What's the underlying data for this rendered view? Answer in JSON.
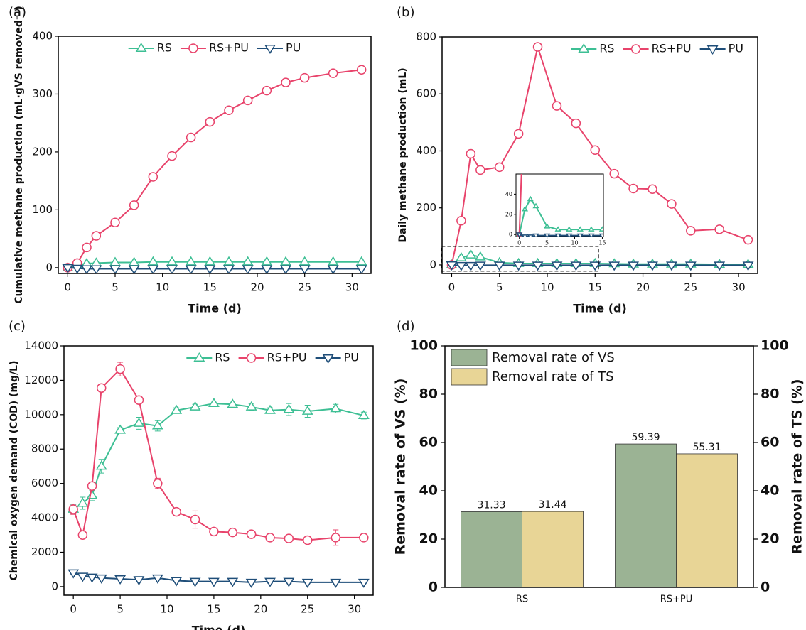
{
  "chart_data": [
    {
      "label": "(a)",
      "type": "line",
      "xlabel": "Time (d)",
      "ylabel": "Cumulative methane production (mL·gVS removed⁻¹)",
      "x": [
        0,
        1,
        2,
        3,
        5,
        7,
        9,
        11,
        13,
        15,
        17,
        19,
        21,
        23,
        25,
        28,
        31
      ],
      "series": [
        {
          "name": "RS",
          "color": "#3dbf94",
          "marker": "triangle-up",
          "values": [
            0,
            5,
            7,
            8,
            9,
            9,
            10,
            10,
            10,
            10,
            10,
            10,
            10,
            10,
            10,
            10,
            10
          ]
        },
        {
          "name": "RS+PU",
          "color": "#e8436b",
          "marker": "circle",
          "values": [
            0,
            8,
            35,
            55,
            78,
            108,
            157,
            193,
            225,
            252,
            272,
            289,
            306,
            320,
            328,
            336,
            342
          ]
        },
        {
          "name": "PU",
          "color": "#1f4e79",
          "marker": "triangle-down",
          "values": [
            0,
            -1,
            -2,
            -2,
            -2,
            -2,
            -2,
            -2,
            -2,
            -2,
            -2,
            -2,
            -2,
            -2,
            -2,
            -2,
            -2
          ]
        }
      ],
      "xlim": [
        -1,
        32
      ],
      "ylim": [
        -10,
        400
      ],
      "xticks": [
        0,
        5,
        10,
        15,
        20,
        25,
        30
      ],
      "yticks": [
        0,
        100,
        200,
        300,
        400
      ],
      "legend": "upper center"
    },
    {
      "label": "(b)",
      "type": "line",
      "xlabel": "Time (d)",
      "ylabel": "Daily methane production (mL)",
      "x": [
        0,
        1,
        2,
        3,
        5,
        7,
        9,
        11,
        13,
        15,
        17,
        19,
        21,
        23,
        25,
        28,
        31
      ],
      "series": [
        {
          "name": "RS",
          "color": "#3dbf94",
          "marker": "triangle-up",
          "values": [
            0,
            25,
            35,
            28,
            8,
            5,
            5,
            5,
            5,
            5,
            4,
            3,
            3,
            3,
            3,
            2,
            2
          ]
        },
        {
          "name": "RS+PU",
          "color": "#e8436b",
          "marker": "circle",
          "values": [
            0,
            155,
            390,
            333,
            343,
            460,
            765,
            558,
            497,
            403,
            320,
            268,
            266,
            214,
            120,
            125,
            88
          ]
        },
        {
          "name": "PU",
          "color": "#1f4e79",
          "marker": "triangle-down",
          "values": [
            0,
            -2,
            -2,
            -1,
            -1,
            -1,
            -1,
            -1,
            -1,
            -1,
            -1,
            -1,
            -1,
            -1,
            -1,
            -1,
            -1
          ]
        }
      ],
      "xlim": [
        -1,
        32
      ],
      "ylim": [
        -30,
        800
      ],
      "xticks": [
        0,
        5,
        10,
        15,
        20,
        25,
        30
      ],
      "yticks": [
        0,
        200,
        400,
        600,
        800
      ],
      "legend": "upper right",
      "inset": {
        "xlim": [
          -0.6,
          15.2
        ],
        "ylim": [
          -2,
          60
        ],
        "xticks": [
          0,
          5,
          10,
          15
        ],
        "yticks": [
          0,
          20,
          40
        ]
      }
    },
    {
      "label": "(c)",
      "type": "line",
      "xlabel": "Time (d)",
      "ylabel": "Chemical oxygen demand (COD) (mg/L)",
      "x": [
        0,
        1,
        2,
        3,
        5,
        7,
        9,
        11,
        13,
        15,
        17,
        19,
        21,
        23,
        25,
        28,
        31
      ],
      "series": [
        {
          "name": "RS",
          "color": "#3dbf94",
          "marker": "triangle-up",
          "values": [
            4500,
            4850,
            5300,
            7000,
            9100,
            9500,
            9350,
            10250,
            10450,
            10650,
            10600,
            10450,
            10250,
            10300,
            10200,
            10350,
            9950
          ],
          "errors": [
            250,
            350,
            300,
            400,
            150,
            350,
            300,
            150,
            150,
            150,
            200,
            200,
            150,
            350,
            350,
            250,
            200
          ]
        },
        {
          "name": "RS+PU",
          "color": "#e8436b",
          "marker": "circle",
          "values": [
            4500,
            3000,
            5850,
            11550,
            12650,
            10850,
            6000,
            4350,
            3900,
            3200,
            3150,
            3050,
            2850,
            2800,
            2700,
            2850,
            2850
          ],
          "errors": [
            300,
            100,
            100,
            100,
            400,
            100,
            300,
            100,
            500,
            100,
            150,
            200,
            150,
            100,
            100,
            450,
            100
          ]
        },
        {
          "name": "PU",
          "color": "#1f4e79",
          "marker": "triangle-down",
          "values": [
            800,
            600,
            550,
            500,
            450,
            400,
            500,
            350,
            300,
            300,
            300,
            250,
            300,
            300,
            250,
            250,
            250
          ],
          "errors": [
            100,
            50,
            50,
            50,
            50,
            50,
            100,
            50,
            50,
            50,
            50,
            50,
            100,
            100,
            50,
            50,
            50
          ]
        }
      ],
      "xlim": [
        -1,
        32
      ],
      "ylim": [
        -500,
        14000
      ],
      "xticks": [
        0,
        5,
        10,
        15,
        20,
        25,
        30
      ],
      "yticks": [
        0,
        2000,
        4000,
        6000,
        8000,
        10000,
        12000,
        14000
      ],
      "legend": "upper right"
    },
    {
      "label": "(d)",
      "type": "bar",
      "ylabel": "Removal rate of VS (%)",
      "y2label": "Removal rate of TS (%)",
      "categories": [
        "RS",
        "RS+PU"
      ],
      "series": [
        {
          "name": "Removal rate of VS",
          "color": "#9bb394",
          "values": [
            31.33,
            59.39
          ]
        },
        {
          "name": "Removal rate of TS",
          "color": "#e8d596",
          "values": [
            31.44,
            55.31
          ]
        }
      ],
      "ylim": [
        0,
        100
      ],
      "yticks": [
        0,
        20,
        40,
        60,
        80,
        100
      ],
      "y2lim": [
        0,
        100
      ],
      "y2ticks": [
        0,
        20,
        40,
        60,
        80,
        100
      ],
      "legend": "upper left"
    }
  ]
}
